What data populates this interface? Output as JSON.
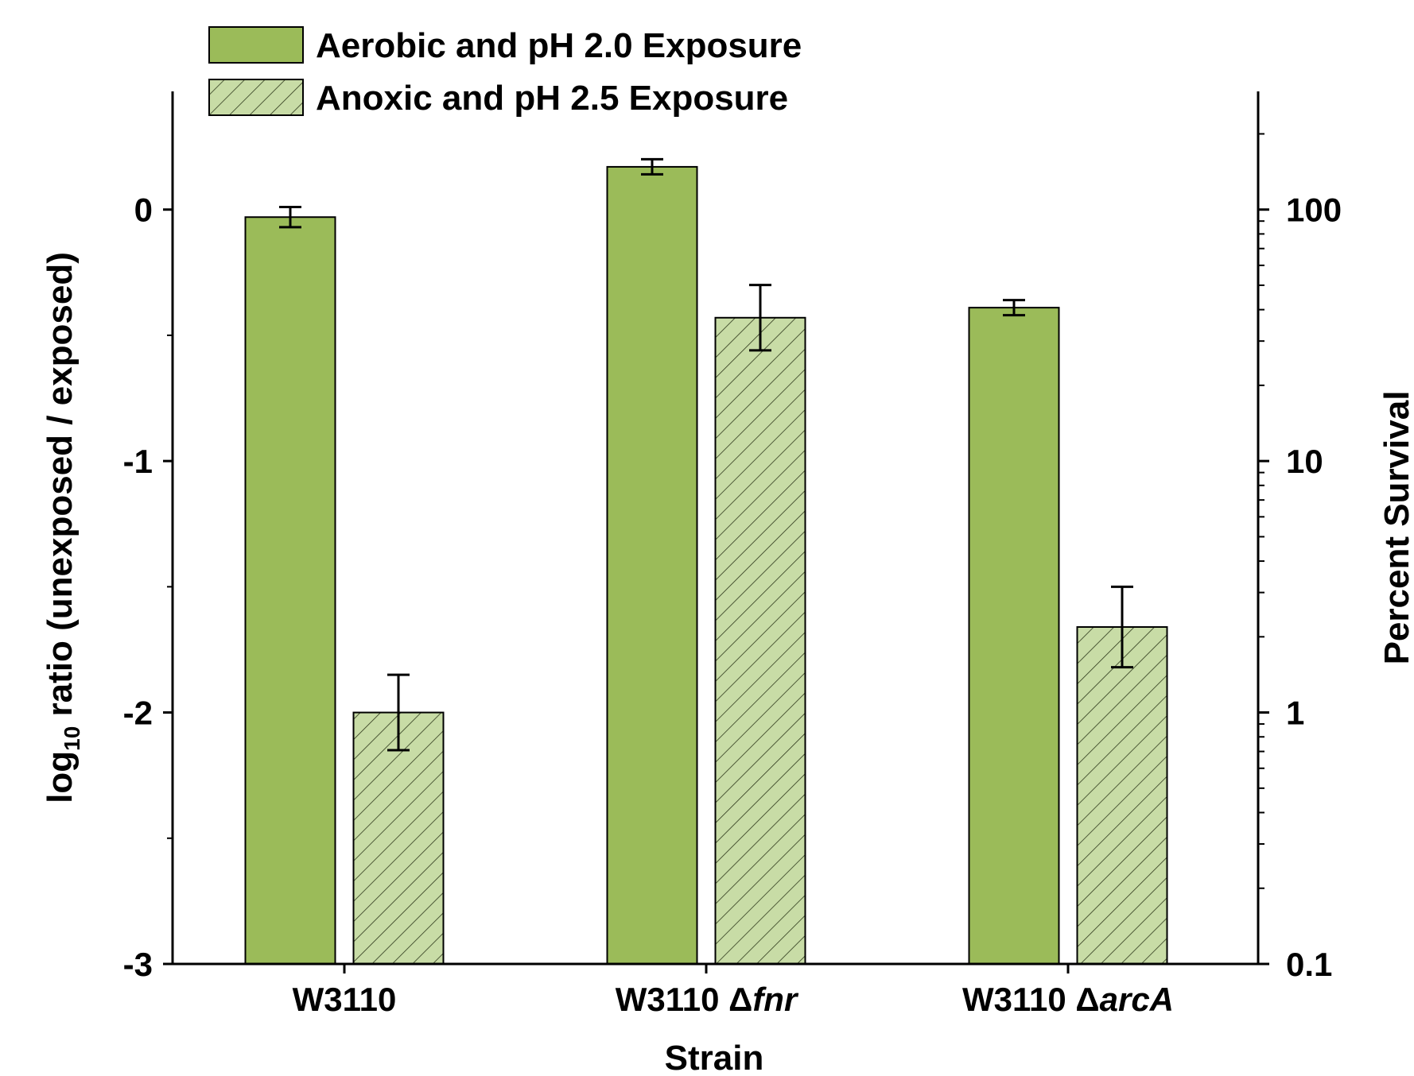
{
  "chart_data": {
    "type": "bar",
    "xlabel": "Strain",
    "ylabel": {
      "main": "log",
      "sub": "10",
      "rest": " ratio (unexposed / exposed)"
    },
    "y2label": "Percent Survival",
    "categories": [
      {
        "base": "W3110 ",
        "prefix": "",
        "italic": ""
      },
      {
        "base": "W3110 ",
        "prefix": "Δ",
        "italic": "fnr"
      },
      {
        "base": "W3110 ",
        "prefix": "Δ",
        "italic": "arcA"
      }
    ],
    "ylim": [
      -3,
      0.47
    ],
    "yticks": [
      0,
      -1,
      -2,
      -3
    ],
    "ytick_labels": [
      "0",
      "-1",
      "-2",
      "-3"
    ],
    "y2_scale": "log",
    "y2ticks": [
      100,
      10,
      1,
      0.1
    ],
    "y2tick_labels": [
      "100",
      "10",
      "1",
      "0.1"
    ],
    "series": [
      {
        "name": "Aerobic and pH 2.0 Exposure",
        "values": [
          -0.03,
          0.17,
          -0.39
        ],
        "errors": [
          0.04,
          0.03,
          0.03
        ],
        "color": "#9bbb59",
        "pattern": "solid"
      },
      {
        "name": "Anoxic and pH 2.5 Exposure",
        "values": [
          -2.0,
          -0.43,
          -1.66
        ],
        "errors": [
          0.15,
          0.13,
          0.16
        ],
        "color": "#c8dca6",
        "pattern": "hatch"
      }
    ],
    "legend": "top-left",
    "grid": false
  }
}
